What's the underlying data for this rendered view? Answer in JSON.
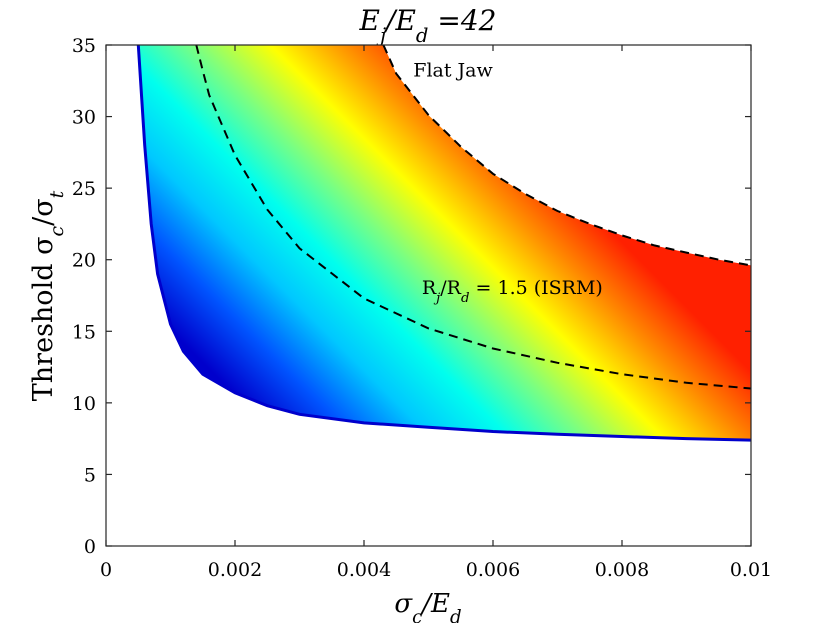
{
  "chart_data": {
    "type": "area",
    "title": "E_j/E_d =42",
    "xlabel": "σ_c/E_d",
    "ylabel": "Threshold σ_c/σ_t",
    "xlim": [
      0,
      0.01
    ],
    "ylim": [
      0,
      35
    ],
    "xticks": [
      0,
      0.002,
      0.004,
      0.006,
      0.008,
      0.01
    ],
    "xtick_labels": [
      "0",
      "0.002",
      "0.004",
      "0.006",
      "0.008",
      "0.01"
    ],
    "yticks": [
      0,
      5,
      10,
      15,
      20,
      25,
      30,
      35
    ],
    "ytick_labels": [
      "0",
      "5",
      "10",
      "15",
      "20",
      "25",
      "30",
      "35"
    ],
    "grid": false,
    "colormap": [
      "#0000cc",
      "#0055ff",
      "#00c8ff",
      "#00ffee",
      "#7cff80",
      "#ffff00",
      "#ff8c00",
      "#ff2000"
    ],
    "series": [
      {
        "name": "",
        "role": "lower-boundary",
        "x": [
          0.0005,
          0.0006,
          0.0007,
          0.0008,
          0.001,
          0.0012,
          0.0015,
          0.002,
          0.0025,
          0.003,
          0.004,
          0.005,
          0.006,
          0.007,
          0.008,
          0.009,
          0.01
        ],
        "y": [
          35,
          28,
          22.5,
          19,
          15.5,
          13.6,
          12.0,
          10.7,
          9.8,
          9.2,
          8.6,
          8.3,
          8.0,
          7.8,
          7.65,
          7.5,
          7.4
        ]
      },
      {
        "name": "Flat Jaw",
        "role": "upper-boundary",
        "style": "dashed",
        "x": [
          0.0043,
          0.0045,
          0.005,
          0.0055,
          0.006,
          0.0065,
          0.007,
          0.0075,
          0.008,
          0.0085,
          0.009,
          0.0095,
          0.01
        ],
        "y": [
          35,
          33.0,
          30.1,
          27.9,
          26.0,
          24.6,
          23.4,
          22.5,
          21.7,
          21.0,
          20.5,
          20.0,
          19.6
        ]
      },
      {
        "name": "R_j/R_d = 1.5 (ISRM)",
        "role": "isrm-curve",
        "style": "dashed",
        "x": [
          0.0014,
          0.0015,
          0.0016,
          0.002,
          0.0025,
          0.003,
          0.004,
          0.005,
          0.006,
          0.007,
          0.008,
          0.009,
          0.01
        ],
        "y": [
          35,
          33.2,
          31.5,
          27.3,
          23.5,
          20.8,
          17.3,
          15.2,
          13.8,
          12.8,
          12.0,
          11.4,
          11.0
        ]
      }
    ],
    "annotations": [
      {
        "text": "Flat Jaw",
        "x": 0.00538,
        "y": 32.8
      },
      {
        "text": "R_j/R_d = 1.5 (ISRM)",
        "x": 0.0063,
        "y": 17.6
      }
    ]
  }
}
